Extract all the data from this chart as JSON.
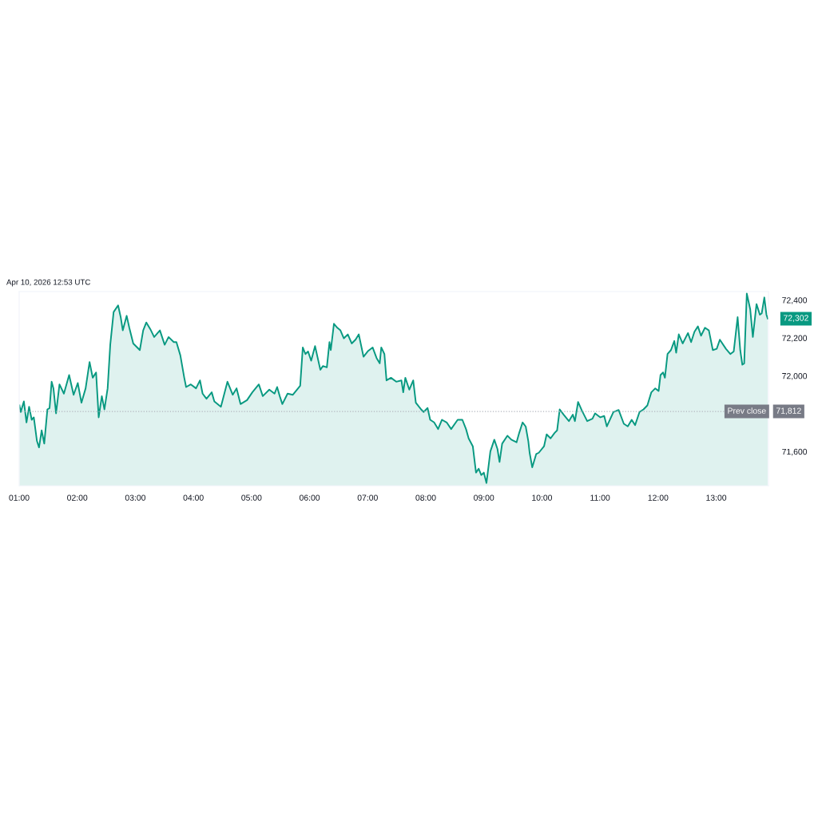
{
  "chart_data": {
    "type": "area",
    "annotations": [
      "Apr 10, 2026 12:53 UTC",
      {
        "text": "72,302",
        "x": 13.887,
        "y": 72302
      },
      "71,812"
    ],
    "x": [
      1.005,
      1.027,
      1.081,
      1.126,
      1.171,
      1.216,
      1.252,
      1.306,
      1.342,
      1.387,
      1.432,
      1.486,
      1.523,
      1.559,
      1.59,
      1.635,
      1.694,
      1.77,
      1.86,
      1.937,
      2.009,
      2.072,
      2.144,
      2.212,
      2.266,
      2.324,
      2.369,
      2.423,
      2.468,
      2.523,
      2.568,
      2.626,
      2.703,
      2.748,
      2.784,
      2.851,
      2.896,
      2.964,
      3.077,
      3.135,
      3.189,
      3.257,
      3.324,
      3.423,
      3.505,
      3.572,
      3.662,
      3.707,
      3.775,
      3.842,
      3.874,
      3.955,
      4.045,
      4.113,
      4.158,
      4.225,
      4.315,
      4.36,
      4.473,
      4.586,
      4.676,
      4.743,
      4.811,
      4.923,
      5.014,
      5.126,
      5.194,
      5.306,
      5.396,
      5.441,
      5.486,
      5.531,
      5.621,
      5.712,
      5.802,
      5.838,
      5.883,
      5.928,
      5.973,
      6.027,
      6.094,
      6.185,
      6.229,
      6.297,
      6.342,
      6.365,
      6.419,
      6.477,
      6.531,
      6.59,
      6.658,
      6.725,
      6.793,
      6.847,
      6.928,
      7.009,
      7.085,
      7.153,
      7.207,
      7.234,
      7.288,
      7.324,
      7.401,
      7.491,
      7.581,
      7.612,
      7.648,
      7.716,
      7.784,
      7.829,
      7.919,
      7.964,
      8.031,
      8.076,
      8.144,
      8.212,
      8.279,
      8.36,
      8.437,
      8.549,
      8.63,
      8.693,
      8.738,
      8.81,
      8.865,
      8.91,
      8.955,
      9.0,
      9.045,
      9.112,
      9.18,
      9.234,
      9.27,
      9.315,
      9.405,
      9.473,
      9.563,
      9.608,
      9.667,
      9.721,
      9.765,
      9.788,
      9.833,
      9.901,
      9.946,
      10.036,
      10.081,
      10.149,
      10.216,
      10.261,
      10.306,
      10.374,
      10.464,
      10.532,
      10.568,
      10.622,
      10.689,
      10.779,
      10.87,
      10.915,
      11.005,
      11.072,
      11.117,
      11.23,
      11.32,
      11.41,
      11.478,
      11.545,
      11.604,
      11.68,
      11.748,
      11.815,
      11.883,
      11.951,
      12.009,
      12.041,
      12.086,
      12.117,
      12.162,
      12.221,
      12.279,
      12.311,
      12.356,
      12.423,
      12.514,
      12.568,
      12.626,
      12.685,
      12.739,
      12.807,
      12.874,
      12.942,
      13.009,
      13.063,
      13.167,
      13.243,
      13.302,
      13.369,
      13.414,
      13.45,
      13.482,
      13.527,
      13.586,
      13.631,
      13.694,
      13.752,
      13.784,
      13.829,
      13.865,
      13.887
    ],
    "series": [
      {
        "color": "#089981",
        "values": [
          71844,
          71809,
          71865,
          71754,
          71837,
          71768,
          71781,
          71656,
          71622,
          71712,
          71642,
          71823,
          71830,
          71969,
          71934,
          71802,
          71955,
          71906,
          72004,
          71900,
          71962,
          71858,
          71934,
          72073,
          71990,
          72018,
          71781,
          71893,
          71823,
          71934,
          72164,
          72337,
          72372,
          72310,
          72240,
          72317,
          72254,
          72171,
          72136,
          72240,
          72282,
          72247,
          72205,
          72240,
          72164,
          72205,
          72178,
          72178,
          72108,
          71990,
          71941,
          71955,
          71934,
          71976,
          71906,
          71879,
          71913,
          71865,
          71837,
          71969,
          71900,
          71934,
          71851,
          71872,
          71913,
          71955,
          71893,
          71927,
          71906,
          71941,
          71893,
          71851,
          71906,
          71900,
          71934,
          71948,
          72150,
          72115,
          72129,
          72080,
          72157,
          72032,
          72052,
          72045,
          72178,
          72136,
          72275,
          72254,
          72240,
          72198,
          72219,
          72171,
          72192,
          72219,
          72101,
          72132,
          72150,
          72094,
          72066,
          72150,
          72115,
          71976,
          71990,
          71969,
          71976,
          71913,
          71990,
          71927,
          71976,
          71858,
          71823,
          71809,
          71830,
          71768,
          71754,
          71719,
          71768,
          71754,
          71719,
          71768,
          71768,
          71719,
          71670,
          71628,
          71489,
          71510,
          71476,
          71489,
          71434,
          71601,
          71663,
          71614,
          71545,
          71642,
          71684,
          71663,
          71649,
          71698,
          71754,
          71732,
          71656,
          71594,
          71517,
          71587,
          71594,
          71628,
          71691,
          71670,
          71698,
          71712,
          71823,
          71795,
          71761,
          71795,
          71761,
          71862,
          71816,
          71761,
          71774,
          71802,
          71781,
          71788,
          71733,
          71809,
          71820,
          71747,
          71733,
          71768,
          71740,
          71809,
          71823,
          71844,
          71913,
          71934,
          71920,
          72004,
          72018,
          71990,
          72115,
          72136,
          72184,
          72122,
          72219,
          72171,
          72226,
          72178,
          72233,
          72261,
          72212,
          72254,
          72240,
          72136,
          72143,
          72191,
          72143,
          72115,
          72129,
          72310,
          72136,
          72059,
          72066,
          72435,
          72351,
          72205,
          72379,
          72323,
          72330,
          72414,
          72323,
          72302
        ]
      }
    ],
    "xlim": [
      1.0,
      13.9
    ],
    "xticks": [
      {
        "value": 1,
        "label": "01:00"
      },
      {
        "value": 2,
        "label": "02:00"
      },
      {
        "value": 3,
        "label": "03:00"
      },
      {
        "value": 4,
        "label": "04:00"
      },
      {
        "value": 5,
        "label": "05:00"
      },
      {
        "value": 6,
        "label": "06:00"
      },
      {
        "value": 7,
        "label": "07:00"
      },
      {
        "value": 8,
        "label": "08:00"
      },
      {
        "value": 9,
        "label": "09:00"
      },
      {
        "value": 10,
        "label": "10:00"
      },
      {
        "value": 11,
        "label": "11:00"
      },
      {
        "value": 12,
        "label": "12:00"
      },
      {
        "value": 13,
        "label": "13:00"
      }
    ],
    "ylim": [
      71420,
      72445
    ],
    "yticks": [
      {
        "value": 71600,
        "label": "71,600"
      },
      {
        "value": 72000,
        "label": "72,000"
      },
      {
        "value": 72200,
        "label": "72,200"
      },
      {
        "value": 72400,
        "label": "72,400"
      }
    ],
    "ref_lines": [
      {
        "axis": "y",
        "value": 71812,
        "label": "Prev close",
        "color": "#b2b5be",
        "line_style": "dotted"
      }
    ]
  }
}
